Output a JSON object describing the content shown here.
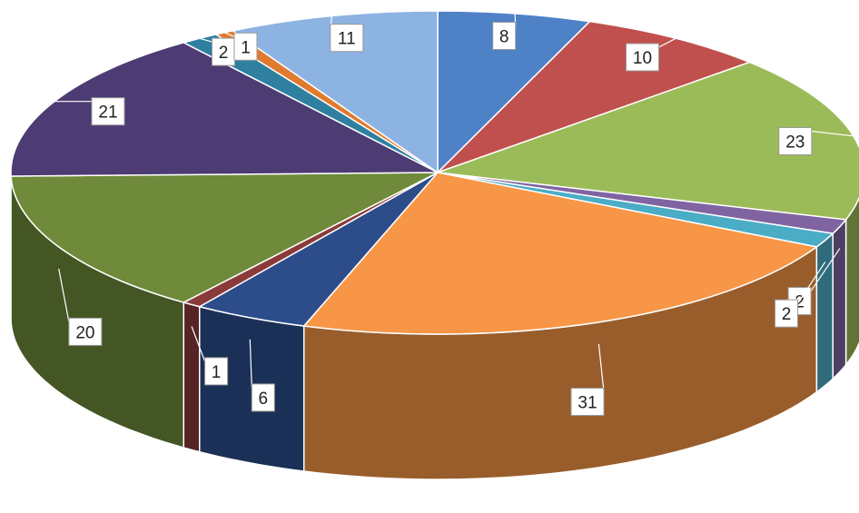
{
  "chart_data": {
    "type": "pie",
    "three_d": true,
    "title": "",
    "legend": "none",
    "slices": [
      {
        "value": 8,
        "label": "8",
        "color": "#4f81c7"
      },
      {
        "value": 10,
        "label": "10",
        "color": "#c0504d"
      },
      {
        "value": 23,
        "label": "23",
        "color": "#9bbb59"
      },
      {
        "value": 2,
        "label": "2",
        "color": "#8064a2"
      },
      {
        "value": 2,
        "label": "2",
        "color": "#4bacc6"
      },
      {
        "value": 31,
        "label": "31",
        "color": "#f79646"
      },
      {
        "value": 6,
        "label": "6",
        "color": "#2c4d8a"
      },
      {
        "value": 1,
        "label": "1",
        "color": "#8b3a3a"
      },
      {
        "value": 20,
        "label": "20",
        "color": "#6e8a3a"
      },
      {
        "value": 21,
        "label": "21",
        "color": "#4d3b73"
      },
      {
        "value": 2,
        "label": "2",
        "color": "#2f7fa0"
      },
      {
        "value": 1,
        "label": "1",
        "color": "#e07a2e"
      },
      {
        "value": 11,
        "label": "11",
        "color": "#8db3e2"
      }
    ]
  }
}
